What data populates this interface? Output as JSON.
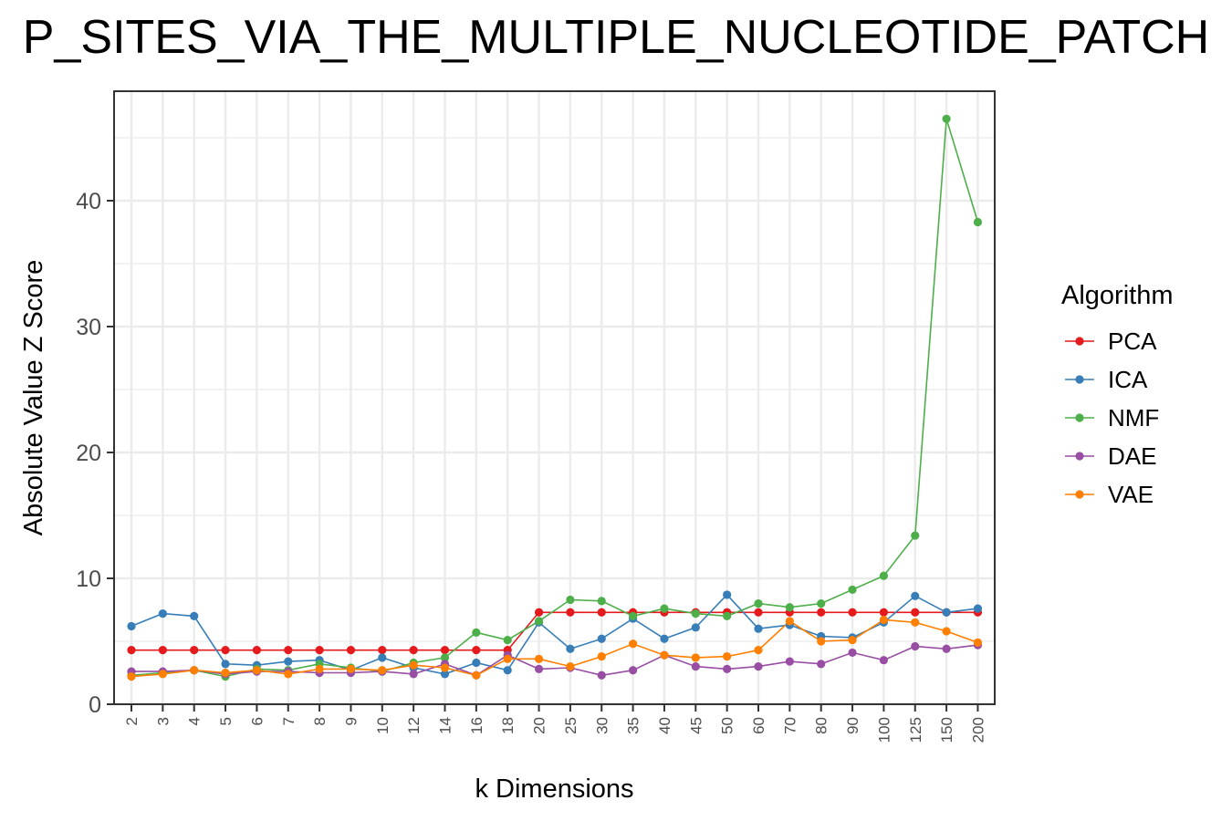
{
  "chart_data": {
    "type": "line",
    "title": "P_SITES_VIA_THE_MULTIPLE_NUCLEOTIDE_PATCH",
    "xlabel": "k Dimensions",
    "ylabel": "Absolute Value Z Score",
    "ylim": [
      0,
      48
    ],
    "yticks": [
      0,
      10,
      20,
      30,
      40
    ],
    "grid": true,
    "legend_title": "Algorithm",
    "legend_position": "right",
    "categories": [
      "2",
      "3",
      "4",
      "5",
      "6",
      "7",
      "8",
      "9",
      "10",
      "12",
      "14",
      "16",
      "18",
      "20",
      "25",
      "30",
      "35",
      "40",
      "45",
      "50",
      "60",
      "70",
      "80",
      "90",
      "100",
      "125",
      "150",
      "200"
    ],
    "series": [
      {
        "name": "PCA",
        "color": "#E41A1C",
        "values": [
          4.3,
          4.3,
          4.3,
          4.3,
          4.3,
          4.3,
          4.3,
          4.3,
          4.3,
          4.3,
          4.3,
          4.3,
          4.3,
          7.3,
          7.3,
          7.3,
          7.3,
          7.3,
          7.3,
          7.3,
          7.3,
          7.3,
          7.3,
          7.3,
          7.3,
          7.3,
          7.3,
          7.3
        ]
      },
      {
        "name": "ICA",
        "color": "#377EB8",
        "values": [
          6.2,
          7.2,
          7.0,
          3.2,
          3.1,
          3.4,
          3.5,
          2.7,
          3.7,
          2.9,
          2.4,
          3.3,
          2.7,
          6.5,
          4.4,
          5.2,
          6.8,
          5.2,
          6.1,
          8.7,
          6.0,
          6.3,
          5.4,
          5.3,
          6.5,
          8.6,
          7.3,
          7.6
        ]
      },
      {
        "name": "NMF",
        "color": "#4DAF4A",
        "values": [
          2.3,
          2.5,
          2.7,
          2.2,
          2.8,
          2.7,
          3.2,
          2.9,
          2.6,
          3.3,
          3.7,
          5.7,
          5.1,
          6.6,
          8.3,
          8.2,
          7.0,
          7.6,
          7.2,
          7.0,
          8.0,
          7.7,
          8.0,
          9.1,
          10.2,
          13.4,
          46.5,
          38.3
        ]
      },
      {
        "name": "DAE",
        "color": "#984EA3",
        "values": [
          2.6,
          2.6,
          2.7,
          2.4,
          2.6,
          2.6,
          2.5,
          2.5,
          2.6,
          2.4,
          3.2,
          2.3,
          3.9,
          2.8,
          2.9,
          2.3,
          2.7,
          3.9,
          3.0,
          2.8,
          3.0,
          3.4,
          3.2,
          4.1,
          3.5,
          4.6,
          4.4,
          4.7
        ]
      },
      {
        "name": "VAE",
        "color": "#FF7F00",
        "values": [
          2.2,
          2.4,
          2.7,
          2.5,
          2.7,
          2.4,
          2.8,
          2.8,
          2.7,
          3.1,
          2.9,
          2.3,
          3.6,
          3.6,
          3.0,
          3.8,
          4.8,
          3.9,
          3.7,
          3.8,
          4.3,
          6.6,
          5.0,
          5.1,
          6.7,
          6.5,
          5.8,
          4.9
        ]
      }
    ]
  }
}
